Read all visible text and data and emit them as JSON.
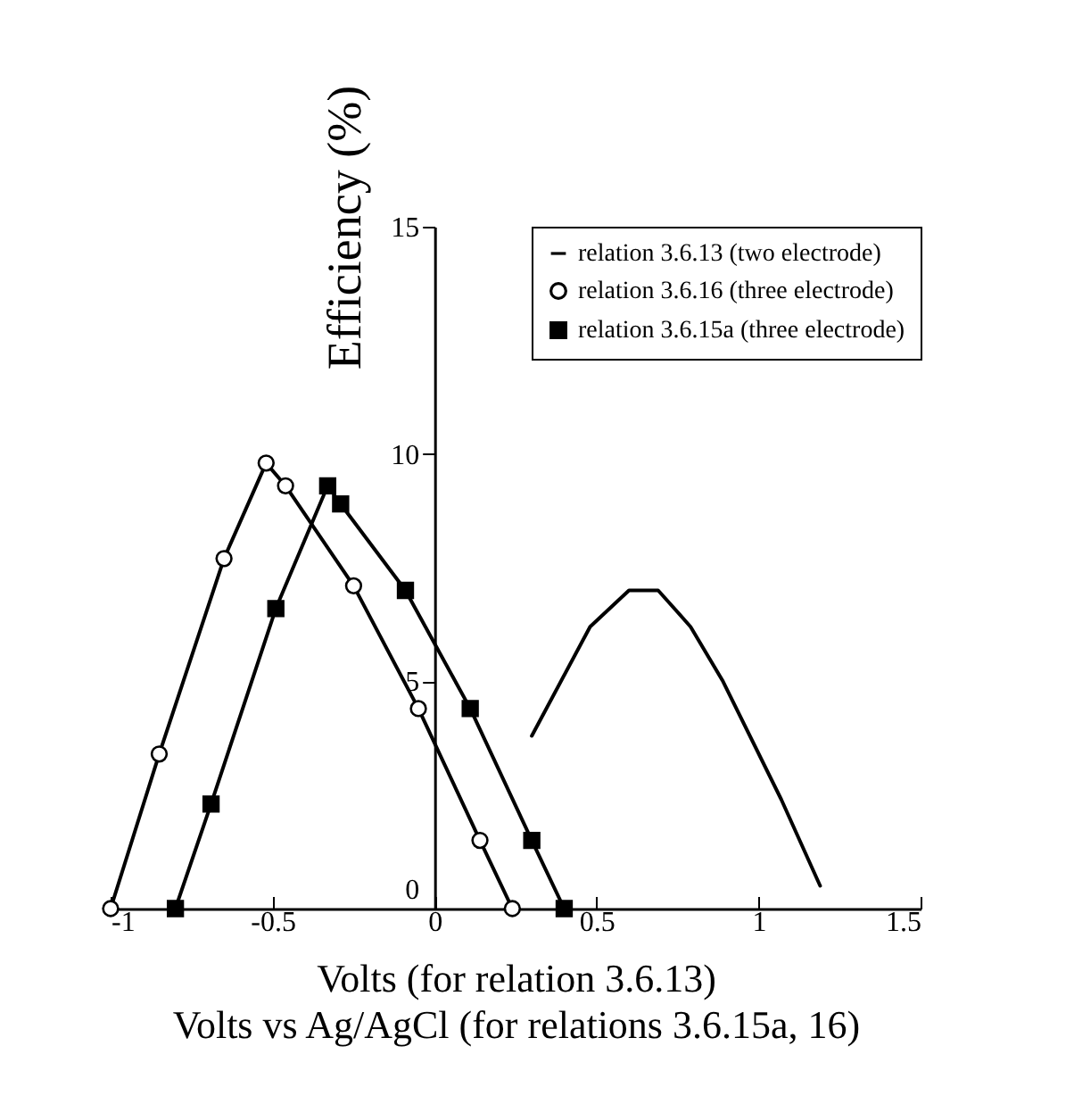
{
  "chart_data": {
    "type": "line",
    "xlabel": "Volts (for relation 3.6.13)\nVolts vs Ag/AgCl (for relations 3.6.15a, 16)",
    "ylabel": "Efficiency (%)",
    "xlim": [
      -1,
      1.5
    ],
    "xticks": [
      -1,
      -0.5,
      0,
      0.5,
      1,
      1.5
    ],
    "ylim": [
      0,
      15
    ],
    "yticks": [
      0,
      5,
      10,
      15
    ],
    "grid": false,
    "legend": "top right",
    "series": [
      {
        "name": "relation 3.6.13 (two electrode)",
        "color": "#000000",
        "marker": "none",
        "x": [
          0.3,
          0.48,
          0.6,
          0.69,
          0.79,
          0.89,
          1.07,
          1.19
        ],
        "values": [
          3.8,
          6.2,
          7.0,
          7.0,
          6.2,
          5.0,
          2.4,
          0.5
        ]
      },
      {
        "name": "relation 3.6.16 (three electrode)",
        "color": "#000000",
        "marker": "circle",
        "x": [
          -1,
          -0.85,
          -0.65,
          -0.52,
          -0.46,
          -0.25,
          -0.05,
          0.14,
          0.24
        ],
        "values": [
          0,
          3.4,
          7.7,
          9.8,
          9.3,
          7.1,
          4.4,
          1.5,
          0
        ]
      },
      {
        "name": "relation 3.6.15a (three electrode)",
        "color": "#000000",
        "marker": "square",
        "x": [
          -0.8,
          -0.69,
          -0.49,
          -0.33,
          -0.29,
          -0.09,
          0.11,
          0.3,
          0.4
        ],
        "values": [
          0,
          2.3,
          6.6,
          9.3,
          8.9,
          7.0,
          4.4,
          1.5,
          0
        ]
      }
    ]
  }
}
